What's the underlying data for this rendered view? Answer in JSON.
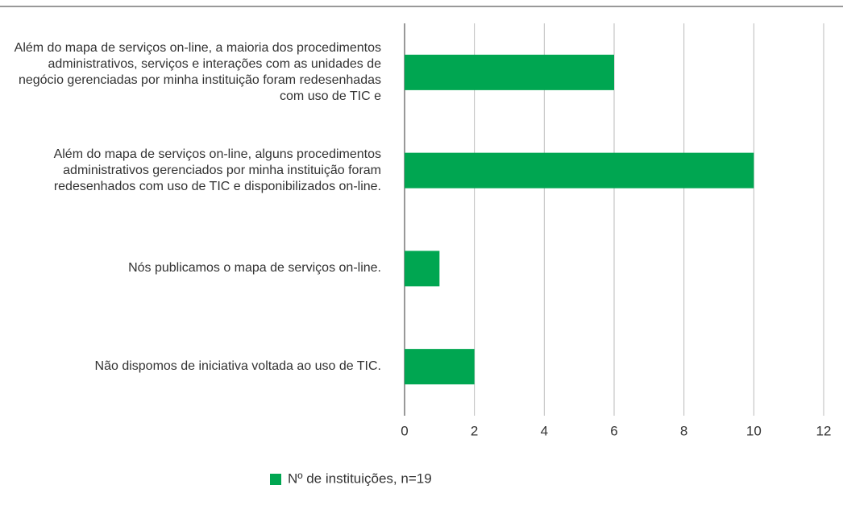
{
  "chart_data": {
    "type": "barh",
    "categories": [
      "Além do mapa de serviços on-line, a maioria dos procedimentos administrativos, serviços e interações com as unidades de negócio gerenciadas por minha instituição foram redesenhadas com uso de TIC e",
      "Além do mapa de serviços on-line, alguns procedimentos administrativos gerenciados por minha instituição foram redesenhados com uso de TIC e disponibilizados on-line.",
      "Nós publicamos o mapa de serviços on-line.",
      "Não dispomos de iniciativa voltada ao uso de TIC."
    ],
    "series": [
      {
        "name": "Nº de instituições, n=19",
        "color": "#00a651",
        "values": [
          6,
          10,
          1,
          2
        ]
      }
    ],
    "xlim": [
      0,
      12
    ],
    "xticks": [
      0,
      2,
      4,
      6,
      8,
      10,
      12
    ],
    "grid": true,
    "legend": "bottom"
  }
}
